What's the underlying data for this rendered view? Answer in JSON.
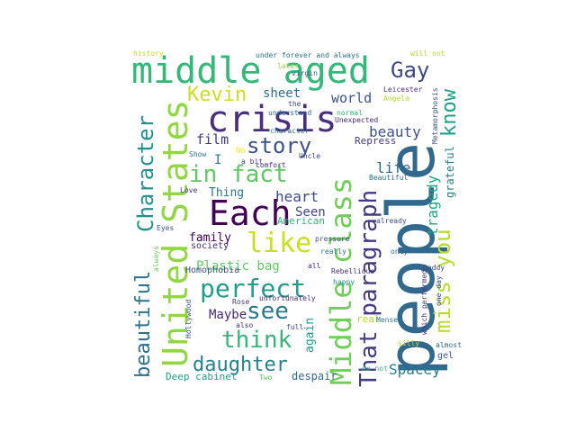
{
  "word_cloud": {
    "words": [
      {
        "text": "people",
        "color": "#31688e"
      },
      {
        "text": "middle aged",
        "color": "#35b779"
      },
      {
        "text": "United States",
        "color": "#90d743"
      },
      {
        "text": "Middle class",
        "color": "#6ece58"
      },
      {
        "text": "crisis",
        "color": "#472f7d"
      },
      {
        "text": "Each",
        "color": "#440154"
      },
      {
        "text": "Character",
        "color": "#21918c"
      },
      {
        "text": "story",
        "color": "#3b528b"
      },
      {
        "text": "in fact",
        "color": "#5ec962"
      },
      {
        "text": "like",
        "color": "#c8e020"
      },
      {
        "text": "perfect",
        "color": "#1f9e89"
      },
      {
        "text": "think",
        "color": "#35b779"
      },
      {
        "text": "see",
        "color": "#2a788e"
      },
      {
        "text": "daughter",
        "color": "#26828e"
      },
      {
        "text": "That paragraph",
        "color": "#443983"
      },
      {
        "text": "miss you",
        "color": "#b5de2b"
      },
      {
        "text": "know",
        "color": "#1fa187"
      },
      {
        "text": "Gay",
        "color": "#3e4989"
      },
      {
        "text": "Kevin",
        "color": "#c8e020"
      },
      {
        "text": "beautiful",
        "color": "#2c728e"
      },
      {
        "text": "tragedy",
        "color": "#21a585"
      },
      {
        "text": "Spacey",
        "color": "#277f8e"
      },
      {
        "text": "beauty",
        "color": "#3b528b"
      },
      {
        "text": "life",
        "color": "#31688e"
      },
      {
        "text": "heart",
        "color": "#3e4989"
      },
      {
        "text": "film",
        "color": "#443983"
      },
      {
        "text": "world",
        "color": "#3b528b"
      },
      {
        "text": "sheet",
        "color": "#2c728e"
      },
      {
        "text": "Seen",
        "color": "#3e4989"
      },
      {
        "text": "family",
        "color": "#440154"
      },
      {
        "text": "Thing",
        "color": "#2a788e"
      },
      {
        "text": "Plastic bag",
        "color": "#5ec962"
      },
      {
        "text": "Maybe",
        "color": "#482878"
      },
      {
        "text": "again",
        "color": "#1f9e89"
      },
      {
        "text": "grateful",
        "color": "#26828e"
      },
      {
        "text": "Repress",
        "color": "#443983"
      },
      {
        "text": "Deep cabinet",
        "color": "#1fa187"
      },
      {
        "text": "despair",
        "color": "#31688e"
      },
      {
        "text": "Homophobia",
        "color": "#3b528b"
      },
      {
        "text": "American",
        "color": "#35b779"
      },
      {
        "text": "society",
        "color": "#482878"
      },
      {
        "text": "real",
        "color": "#b5de2b"
      },
      {
        "text": "under forever and always",
        "color": "#2c728e"
      },
      {
        "text": "later",
        "color": "#8fd744"
      },
      {
        "text": "virgin",
        "color": "#3b528b"
      },
      {
        "text": "Leicester",
        "color": "#472f7d"
      },
      {
        "text": "Angela",
        "color": "#b5de2b"
      },
      {
        "text": "the",
        "color": "#3e4989"
      },
      {
        "text": "understand",
        "color": "#31688e"
      },
      {
        "text": "normal",
        "color": "#35b779"
      },
      {
        "text": "Unexpected",
        "color": "#482878"
      },
      {
        "text": "character",
        "color": "#2a788e"
      },
      {
        "text": "Beautiful",
        "color": "#2c728e"
      },
      {
        "text": "already",
        "color": "#3e4989"
      },
      {
        "text": "pressure",
        "color": "#3b528b"
      },
      {
        "text": "Rebellious",
        "color": "#472f7d"
      },
      {
        "text": "Daddy",
        "color": "#3e4989"
      },
      {
        "text": "Hollywood",
        "color": "#3b528b"
      },
      {
        "text": "Rose",
        "color": "#443983"
      },
      {
        "text": "unfortunately",
        "color": "#482878"
      },
      {
        "text": "Menses",
        "color": "#2c728e"
      },
      {
        "text": "silly",
        "color": "#b5de2b"
      },
      {
        "text": "almost",
        "color": "#31688e"
      },
      {
        "text": "do not",
        "color": "#35b779"
      },
      {
        "text": "history",
        "color": "#c8e020"
      },
      {
        "text": "will not",
        "color": "#b5de2b"
      },
      {
        "text": "Love",
        "color": "#472f7d"
      },
      {
        "text": "Eyes",
        "color": "#3b528b"
      },
      {
        "text": "Show",
        "color": "#2a788e"
      },
      {
        "text": "Uncle",
        "color": "#3e4989"
      },
      {
        "text": "a bit",
        "color": "#443983"
      },
      {
        "text": "comfort",
        "color": "#482878"
      },
      {
        "text": "always",
        "color": "#6ece58"
      },
      {
        "text": "I",
        "color": "#2a788e"
      },
      {
        "text": "No",
        "color": "#fde725"
      },
      {
        "text": "happy",
        "color": "#21918c"
      },
      {
        "text": "only",
        "color": "#31688e"
      },
      {
        "text": "Two",
        "color": "#5ec962"
      },
      {
        "text": "gel",
        "color": "#3b528b"
      },
      {
        "text": "also",
        "color": "#472f7d"
      },
      {
        "text": "full",
        "color": "#3e4989"
      },
      {
        "text": "all",
        "color": "#482878"
      },
      {
        "text": "really",
        "color": "#2c728e"
      },
      {
        "text": "Metamorphosis",
        "color": "#3b528b"
      },
      {
        "text": "which performed",
        "color": "#443983"
      },
      {
        "text": "one day",
        "color": "#3e4989"
      }
    ]
  }
}
